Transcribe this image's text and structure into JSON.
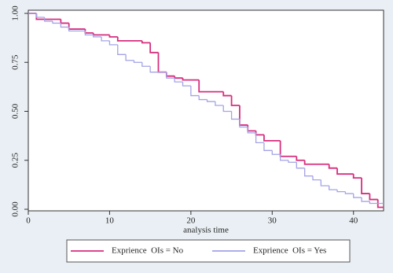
{
  "chart_data": {
    "type": "step",
    "x_label": "analysis time",
    "xlim": [
      0,
      43.7
    ],
    "xticks": [
      0,
      10,
      20,
      30,
      40
    ],
    "ylim": [
      0,
      1
    ],
    "yticks": [
      {
        "value": 0,
        "label": "0.00"
      },
      {
        "value": 0.25,
        "label": "0.25"
      },
      {
        "value": 0.5,
        "label": "0.50"
      },
      {
        "value": 0.75,
        "label": "0.75"
      },
      {
        "value": 1,
        "label": "1.00"
      }
    ],
    "grid": false,
    "series": [
      {
        "name": "Exprience  OIs = No",
        "color": "#d62e7e",
        "x": [
          0,
          1,
          4,
          5,
          7,
          8,
          10,
          11,
          14,
          15,
          16,
          17,
          18,
          19,
          21,
          24,
          25,
          26,
          27,
          28,
          29,
          31,
          33,
          34,
          37,
          38,
          40,
          41,
          42,
          43
        ],
        "values": [
          1,
          0.97,
          0.95,
          0.92,
          0.9,
          0.89,
          0.88,
          0.86,
          0.85,
          0.8,
          0.7,
          0.68,
          0.67,
          0.66,
          0.6,
          0.58,
          0.53,
          0.43,
          0.4,
          0.38,
          0.35,
          0.27,
          0.25,
          0.23,
          0.21,
          0.18,
          0.16,
          0.08,
          0.05,
          0.01
        ]
      },
      {
        "name": "Exprience  OIs = Yes",
        "color": "#a3a3e6",
        "x": [
          0,
          1,
          2,
          3,
          4,
          5,
          7,
          8,
          9,
          10,
          11,
          12,
          13,
          14,
          15,
          17,
          18,
          19,
          20,
          21,
          22,
          23,
          24,
          25,
          26,
          27,
          28,
          29,
          30,
          31,
          32,
          33,
          34,
          35,
          36,
          37,
          38,
          39,
          40,
          41,
          42
        ],
        "values": [
          1,
          0.98,
          0.96,
          0.95,
          0.93,
          0.91,
          0.89,
          0.88,
          0.86,
          0.84,
          0.79,
          0.76,
          0.75,
          0.73,
          0.7,
          0.67,
          0.65,
          0.63,
          0.58,
          0.56,
          0.55,
          0.53,
          0.5,
          0.46,
          0.42,
          0.39,
          0.34,
          0.3,
          0.28,
          0.25,
          0.24,
          0.21,
          0.17,
          0.15,
          0.12,
          0.1,
          0.09,
          0.08,
          0.06,
          0.04,
          0.03
        ]
      }
    ]
  }
}
